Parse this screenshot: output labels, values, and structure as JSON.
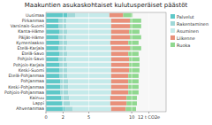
{
  "chart_data": {
    "type": "bar",
    "orientation": "horizontal",
    "stacked": true,
    "title": "Maakuntien asukaskohtaiset kulutusperäiset päästöt",
    "categories": [
      "Ahvenanmaa",
      "Lappi",
      "Kainuu",
      "Pohjois-Pohjanmaa",
      "Keski-Pohjanmaa",
      "Pohjanmaa",
      "Etelä-Pohjanmaa",
      "Keski-Suomi",
      "Pohjois-Karjala",
      "Pohjois-Savo",
      "Etelä-Savo",
      "Etelä-Karjala",
      "Kymenlaakso",
      "Päijät-Häme",
      "Kanta-Häme",
      "Varsinais-Suomi",
      "Pirkanmaa",
      "Uusimaa"
    ],
    "series": [
      {
        "name": "Palvelut",
        "color": "#5ec8c8",
        "values": [
          2.2,
          1.9,
          1.8,
          1.7,
          1.7,
          1.7,
          1.6,
          1.6,
          1.6,
          1.5,
          1.6,
          1.5,
          1.6,
          1.5,
          1.6,
          1.5,
          1.5,
          2.5
        ]
      },
      {
        "name": "Rakentaminen",
        "color": "#a0d8d8",
        "values": [
          0.9,
          0.9,
          0.9,
          0.9,
          0.9,
          0.9,
          0.9,
          0.9,
          0.9,
          0.9,
          0.9,
          0.9,
          0.9,
          0.9,
          0.9,
          0.9,
          0.9,
          0.9
        ]
      },
      {
        "name": "Asuminen",
        "color": "#c5eaea",
        "values": [
          4.5,
          4.7,
          4.8,
          5.0,
          5.0,
          5.0,
          5.1,
          5.1,
          5.1,
          5.2,
          5.1,
          5.2,
          5.0,
          5.2,
          5.1,
          5.2,
          5.2,
          4.0
        ]
      },
      {
        "name": "Liikenne",
        "color": "#e8907a",
        "values": [
          1.7,
          1.9,
          1.9,
          2.0,
          2.0,
          2.0,
          2.0,
          2.1,
          2.1,
          2.1,
          2.0,
          2.2,
          2.1,
          2.2,
          2.1,
          2.2,
          2.2,
          1.6
        ]
      },
      {
        "name": "Ruoka",
        "color": "#90d890",
        "values": [
          1.2,
          1.2,
          1.2,
          1.2,
          1.2,
          1.2,
          1.2,
          1.2,
          1.2,
          1.2,
          1.2,
          1.3,
          1.2,
          1.3,
          1.2,
          1.3,
          1.3,
          1.1
        ]
      }
    ],
    "xlim": [
      0,
      14
    ],
    "xticks": [
      0,
      2,
      5,
      10,
      {
        "value": 12,
        "label": "12 t CO2e"
      }
    ],
    "grid": true,
    "legend": "right"
  }
}
